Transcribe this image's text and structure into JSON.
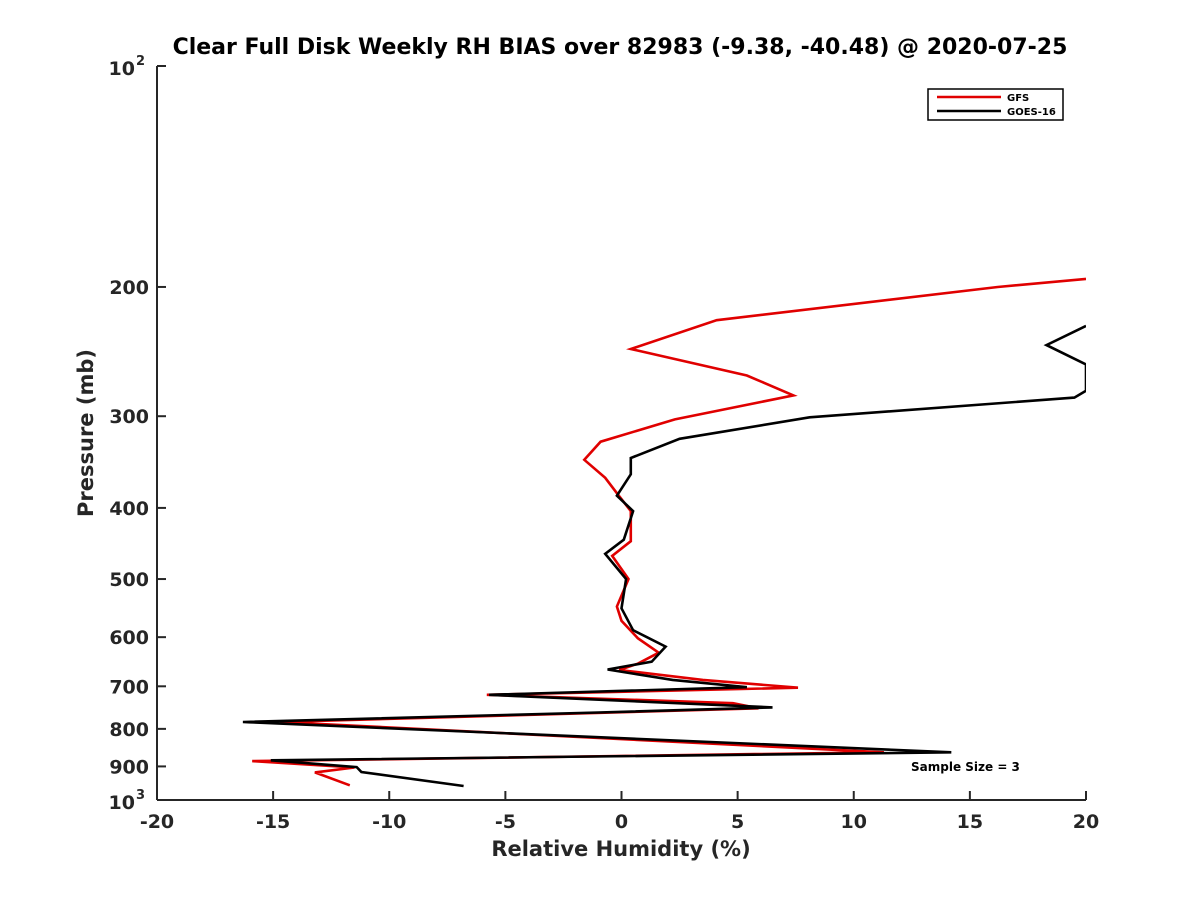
{
  "chart_data": {
    "type": "line",
    "title": "Clear Full Disk Weekly RH BIAS over 82983 (-9.38, -40.48) @ 2020-07-25",
    "xlabel": "Relative Humidity (%)",
    "ylabel": "Pressure (mb)",
    "xlim": [
      -20,
      20
    ],
    "ylim": [
      100,
      1000
    ],
    "yscale": "log",
    "y_reversed": true,
    "x_ticks": [
      -20,
      -15,
      -10,
      -5,
      0,
      5,
      10,
      15,
      20
    ],
    "x_tick_labels": [
      "-20",
      "-15",
      "-10",
      "-5",
      "0",
      "5",
      "10",
      "15",
      "20"
    ],
    "y_ticks": [
      200,
      300,
      400,
      500,
      600,
      700,
      800,
      900
    ],
    "y_tick_labels": [
      "200",
      "300",
      "400",
      "500",
      "600",
      "700",
      "800",
      "900"
    ],
    "y_ends": [
      {
        "value": 100,
        "base": "10",
        "exp": "2"
      },
      {
        "value": 1000,
        "base": "10",
        "exp": "3"
      }
    ],
    "legend_position": "top-right",
    "annotation": "Sample Size = 3",
    "series": [
      {
        "name": "GFS",
        "color": "#e00000",
        "points": [
          {
            "x": 20.0,
            "p": 195
          },
          {
            "x": 16.2,
            "p": 200
          },
          {
            "x": 4.1,
            "p": 222
          },
          {
            "x": 0.4,
            "p": 243
          },
          {
            "x": 5.4,
            "p": 264
          },
          {
            "x": 7.4,
            "p": 281
          },
          {
            "x": 2.3,
            "p": 303
          },
          {
            "x": -0.9,
            "p": 325
          },
          {
            "x": -1.6,
            "p": 344
          },
          {
            "x": -0.7,
            "p": 364
          },
          {
            "x": -0.2,
            "p": 382
          },
          {
            "x": 0.4,
            "p": 404
          },
          {
            "x": 0.4,
            "p": 444
          },
          {
            "x": -0.4,
            "p": 465
          },
          {
            "x": 0.3,
            "p": 500
          },
          {
            "x": -0.2,
            "p": 545
          },
          {
            "x": 0.0,
            "p": 570
          },
          {
            "x": 0.7,
            "p": 602
          },
          {
            "x": 1.6,
            "p": 630
          },
          {
            "x": 0.7,
            "p": 652
          },
          {
            "x": -0.1,
            "p": 665
          },
          {
            "x": 3.5,
            "p": 686
          },
          {
            "x": 7.6,
            "p": 703
          },
          {
            "x": -5.8,
            "p": 719
          },
          {
            "x": 4.8,
            "p": 738
          },
          {
            "x": 5.9,
            "p": 750
          },
          {
            "x": -14.7,
            "p": 783
          },
          {
            "x": 11.3,
            "p": 861
          },
          {
            "x": -15.9,
            "p": 885
          },
          {
            "x": -11.5,
            "p": 903
          },
          {
            "x": -13.2,
            "p": 917
          },
          {
            "x": -11.7,
            "p": 955
          }
        ]
      },
      {
        "name": "GOES-16",
        "color": "#000000",
        "points": [
          {
            "x": 20.0,
            "p": 226
          },
          {
            "x": 18.3,
            "p": 240
          },
          {
            "x": 20.0,
            "p": 255
          },
          {
            "x": 20.0,
            "p": 277
          },
          {
            "x": 19.5,
            "p": 283
          },
          {
            "x": 8.1,
            "p": 301
          },
          {
            "x": 2.5,
            "p": 322
          },
          {
            "x": 0.4,
            "p": 342
          },
          {
            "x": 0.4,
            "p": 360
          },
          {
            "x": -0.2,
            "p": 385
          },
          {
            "x": 0.5,
            "p": 404
          },
          {
            "x": 0.1,
            "p": 442
          },
          {
            "x": -0.7,
            "p": 462
          },
          {
            "x": 0.2,
            "p": 500
          },
          {
            "x": 0.0,
            "p": 548
          },
          {
            "x": 0.5,
            "p": 587
          },
          {
            "x": 1.9,
            "p": 618
          },
          {
            "x": 1.3,
            "p": 648
          },
          {
            "x": -0.6,
            "p": 664
          },
          {
            "x": 2.2,
            "p": 686
          },
          {
            "x": 5.4,
            "p": 702
          },
          {
            "x": -5.7,
            "p": 719
          },
          {
            "x": 6.5,
            "p": 748
          },
          {
            "x": -1.0,
            "p": 760
          },
          {
            "x": -16.3,
            "p": 783
          },
          {
            "x": 14.2,
            "p": 861
          },
          {
            "x": -15.1,
            "p": 883
          },
          {
            "x": -11.4,
            "p": 902
          },
          {
            "x": -11.2,
            "p": 916
          },
          {
            "x": -6.8,
            "p": 957
          }
        ]
      }
    ]
  }
}
